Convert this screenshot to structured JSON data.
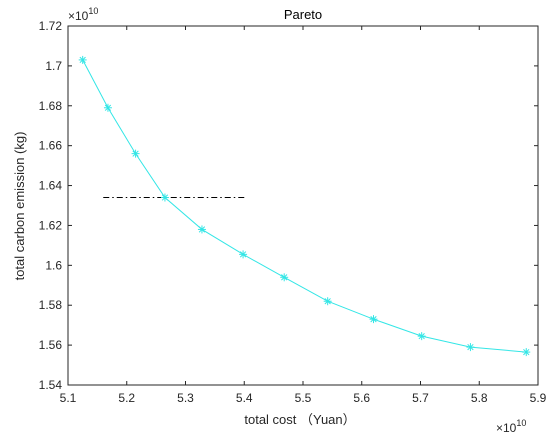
{
  "chart_data": {
    "type": "line",
    "title": "Pareto",
    "xlabel": "total cost （Yuan）",
    "ylabel": "total carbon emission (kg)",
    "x_multiplier": "×10",
    "x_multiplier_exp": "10",
    "y_multiplier": "×10",
    "y_multiplier_exp": "10",
    "xlim": [
      5.1,
      5.9
    ],
    "ylim": [
      1.54,
      1.72
    ],
    "xticks": [
      "5.1",
      "5.2",
      "5.3",
      "5.4",
      "5.5",
      "5.6",
      "5.7",
      "5.8",
      "5.9"
    ],
    "yticks": [
      "1.54",
      "1.56",
      "1.58",
      "1.6",
      "1.62",
      "1.64",
      "1.66",
      "1.68",
      "1.7",
      "1.72"
    ],
    "grid": false,
    "legend": "none",
    "series": [
      {
        "color": "#33e6e6",
        "marker": "asterisk",
        "x": [
          5.125,
          5.168,
          5.215,
          5.265,
          5.328,
          5.398,
          5.468,
          5.542,
          5.62,
          5.702,
          5.785,
          5.88
        ],
        "y": [
          1.703,
          1.679,
          1.656,
          1.634,
          1.618,
          1.6055,
          1.594,
          1.582,
          1.573,
          1.5645,
          1.559,
          1.5565
        ]
      }
    ],
    "reference_line": {
      "color": "#000000",
      "style": "dash-dot",
      "x": [
        5.16,
        5.4
      ],
      "y": 1.634
    }
  }
}
